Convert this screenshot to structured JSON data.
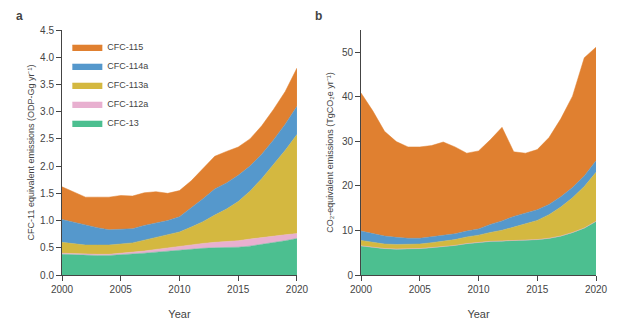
{
  "chart_data": [
    {
      "type": "area",
      "stacked": true,
      "annotations": [
        "a"
      ],
      "xlabel": "Year",
      "ylabel": "CFC-11 equivalent emissions (ODP-Gg yr⁻¹)",
      "x": [
        2000,
        2001,
        2002,
        2003,
        2004,
        2005,
        2006,
        2007,
        2008,
        2009,
        2010,
        2011,
        2012,
        2013,
        2014,
        2015,
        2016,
        2017,
        2018,
        2019,
        2020
      ],
      "series": [
        {
          "name": "CFC-13",
          "color": "#4cbf90",
          "values": [
            0.38,
            0.37,
            0.36,
            0.36,
            0.36,
            0.37,
            0.38,
            0.4,
            0.42,
            0.44,
            0.46,
            0.48,
            0.49,
            0.5,
            0.5,
            0.51,
            0.53,
            0.56,
            0.6,
            0.63,
            0.67
          ]
        },
        {
          "name": "CFC-112a",
          "color": "#e8b0d0",
          "values": [
            0.02,
            0.02,
            0.02,
            0.02,
            0.02,
            0.03,
            0.03,
            0.04,
            0.05,
            0.06,
            0.07,
            0.08,
            0.09,
            0.1,
            0.11,
            0.12,
            0.13,
            0.13,
            0.12,
            0.11,
            0.09
          ]
        },
        {
          "name": "CFC-113a",
          "color": "#d4b840",
          "values": [
            0.2,
            0.18,
            0.17,
            0.17,
            0.17,
            0.17,
            0.18,
            0.2,
            0.22,
            0.24,
            0.26,
            0.32,
            0.4,
            0.5,
            0.6,
            0.72,
            0.88,
            1.08,
            1.3,
            1.55,
            1.82
          ]
        },
        {
          "name": "CFC-114a",
          "color": "#5598cc",
          "values": [
            0.42,
            0.4,
            0.36,
            0.32,
            0.28,
            0.27,
            0.26,
            0.27,
            0.26,
            0.26,
            0.28,
            0.35,
            0.42,
            0.48,
            0.48,
            0.48,
            0.46,
            0.45,
            0.46,
            0.48,
            0.52
          ]
        },
        {
          "name": "CFC-115",
          "color": "#e08030",
          "values": [
            0.6,
            0.55,
            0.52,
            0.56,
            0.6,
            0.62,
            0.6,
            0.6,
            0.58,
            0.5,
            0.48,
            0.5,
            0.55,
            0.6,
            0.58,
            0.52,
            0.5,
            0.52,
            0.56,
            0.6,
            0.7
          ]
        }
      ],
      "xlim": [
        2000,
        2020
      ],
      "xticks": [
        2000,
        2005,
        2010,
        2015,
        2020
      ],
      "ylim": [
        0,
        4.5
      ],
      "yticks": [
        {
          "value": 0,
          "label": "0.0"
        },
        0.5,
        {
          "value": 1.0,
          "label": "1.0"
        },
        1.5,
        {
          "value": 2.0,
          "label": "2.0"
        },
        2.5,
        {
          "value": 3.0,
          "label": "3.0"
        },
        3.5,
        {
          "value": 4.0,
          "label": "4.0"
        },
        4.5
      ],
      "grid": false,
      "legend": "upper left"
    },
    {
      "type": "area",
      "stacked": true,
      "annotations": [
        "b"
      ],
      "xlabel": "Year",
      "ylabel": "CO₂-equivalent emissions (TgCO₂e yr⁻¹)",
      "x": [
        2000,
        2001,
        2002,
        2003,
        2004,
        2005,
        2006,
        2007,
        2008,
        2009,
        2010,
        2011,
        2012,
        2013,
        2014,
        2015,
        2016,
        2017,
        2018,
        2019,
        2020
      ],
      "series": [
        {
          "name": "CFC-13",
          "color": "#4cbf90",
          "values": [
            6.5,
            6.2,
            5.9,
            5.8,
            5.8,
            5.9,
            6.1,
            6.3,
            6.6,
            7.0,
            7.3,
            7.5,
            7.6,
            7.7,
            7.8,
            7.9,
            8.2,
            8.7,
            9.5,
            10.5,
            12.0
          ]
        },
        {
          "name": "CFC-112a",
          "color": "#e8b0d0",
          "values": [
            0.05,
            0.05,
            0.05,
            0.05,
            0.05,
            0.05,
            0.05,
            0.05,
            0.05,
            0.05,
            0.05,
            0.05,
            0.05,
            0.05,
            0.05,
            0.05,
            0.05,
            0.05,
            0.05,
            0.05,
            0.05
          ]
        },
        {
          "name": "CFC-113a",
          "color": "#d4b840",
          "values": [
            1.2,
            1.1,
            1.0,
            1.0,
            1.0,
            1.0,
            1.1,
            1.2,
            1.3,
            1.5,
            1.6,
            2.0,
            2.4,
            3.0,
            3.6,
            4.3,
            5.3,
            6.5,
            7.8,
            9.3,
            11.0
          ]
        },
        {
          "name": "CFC-114a",
          "color": "#5598cc",
          "values": [
            2.1,
            2.0,
            1.8,
            1.6,
            1.4,
            1.3,
            1.3,
            1.3,
            1.3,
            1.3,
            1.4,
            1.8,
            2.1,
            2.4,
            2.4,
            2.4,
            2.3,
            2.3,
            2.3,
            2.4,
            2.6
          ]
        },
        {
          "name": "CFC-115",
          "color": "#e08030",
          "values": [
            31.0,
            27.5,
            23.5,
            21.5,
            20.5,
            20.5,
            20.5,
            21.0,
            19.5,
            17.5,
            17.5,
            19.0,
            21.0,
            14.5,
            13.5,
            13.5,
            15.0,
            17.5,
            20.5,
            26.5,
            25.5
          ]
        }
      ],
      "xlim": [
        2000,
        2020
      ],
      "xticks": [
        2000,
        2005,
        2010,
        2015,
        2020
      ],
      "ylim": [
        0,
        55
      ],
      "yticks": [
        0,
        10,
        20,
        30,
        40,
        50
      ],
      "grid": false
    }
  ]
}
